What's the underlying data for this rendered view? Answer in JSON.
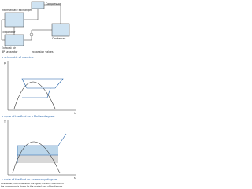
{
  "panel_a": {
    "compressor": "Compressor",
    "exchanger": "Intermediate exchanger",
    "condenser": "Condenser",
    "evaporator": "Evaporator",
    "exhaust": "Exhaust air",
    "separator": "BP separator",
    "valves": "expansion valves",
    "caption": "a  schematic of machine"
  },
  "panel_b": {
    "y_axis": "p",
    "x_axis": "h",
    "caption": "b  cycle of the fluid on a Mollier diagram"
  },
  "panel_c": {
    "y_axis": "T",
    "x_axis": "s",
    "caption": "c  cycle of the fluid on an entropy diagram"
  },
  "note": [
    "After water, not contained in the figure, the work delivered to",
    "the compressor is shown by the shaded area of the diagram."
  ]
}
